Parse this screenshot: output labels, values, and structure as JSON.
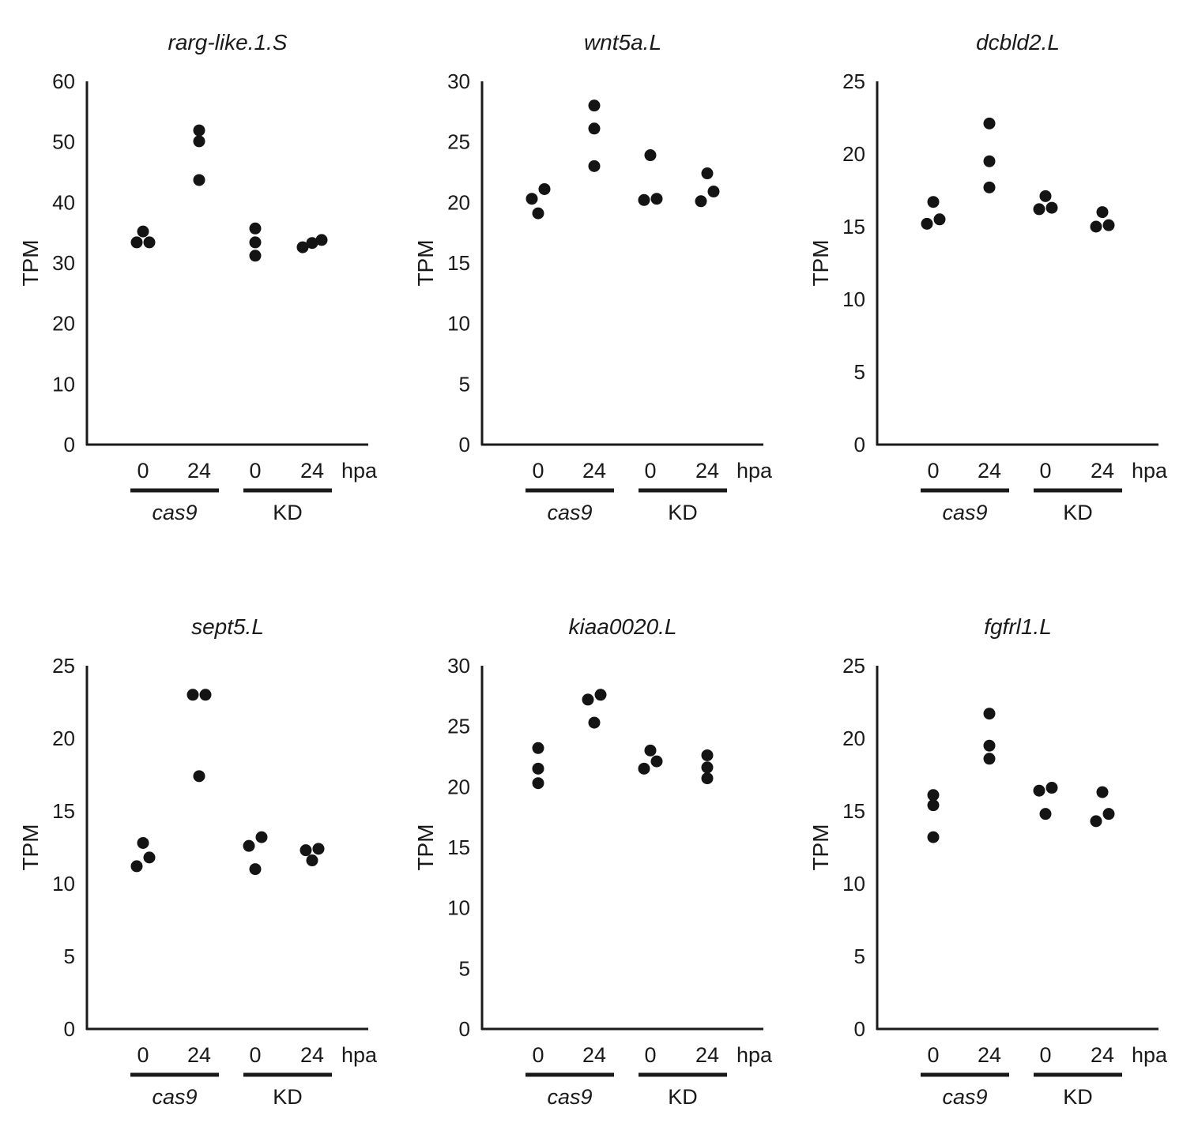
{
  "figure": {
    "point_color": "#141414",
    "axis_color": "#1a1a1a"
  },
  "chart_data": [
    {
      "type": "scatter",
      "title": "rarg-like.1.S",
      "ylabel": "TPM",
      "ylim": [
        0,
        60
      ],
      "yticks": [
        0,
        10,
        20,
        30,
        40,
        50,
        60
      ],
      "xtick_labels": [
        "0",
        "24",
        "0",
        "24"
      ],
      "xunit_label": "hpa",
      "groups": [
        {
          "label": "cas9",
          "italic": true
        },
        {
          "label": "KD",
          "italic": false
        }
      ],
      "series": [
        {
          "name": "cas9 0 hpa",
          "values": [
            35.2,
            33.4,
            33.4
          ]
        },
        {
          "name": "cas9 24 hpa",
          "values": [
            51.9,
            50.1,
            43.7
          ]
        },
        {
          "name": "KD 0 hpa",
          "values": [
            35.7,
            33.4,
            31.2
          ]
        },
        {
          "name": "KD 24 hpa",
          "values": [
            32.6,
            33.8,
            33.3
          ]
        }
      ]
    },
    {
      "type": "scatter",
      "title": "wnt5a.L",
      "ylabel": "TPM",
      "ylim": [
        0,
        30
      ],
      "yticks": [
        0,
        5,
        10,
        15,
        20,
        25,
        30
      ],
      "xtick_labels": [
        "0",
        "24",
        "0",
        "24"
      ],
      "xunit_label": "hpa",
      "groups": [
        {
          "label": "cas9",
          "italic": true
        },
        {
          "label": "KD",
          "italic": false
        }
      ],
      "series": [
        {
          "name": "cas9 0 hpa",
          "values": [
            21.1,
            20.3,
            19.1
          ]
        },
        {
          "name": "cas9 24 hpa",
          "values": [
            28.0,
            26.1,
            23.0
          ]
        },
        {
          "name": "KD 0 hpa",
          "values": [
            23.9,
            20.2,
            20.3
          ]
        },
        {
          "name": "KD 24 hpa",
          "values": [
            22.4,
            20.9,
            20.1
          ]
        }
      ]
    },
    {
      "type": "scatter",
      "title": "dcbld2.L",
      "ylabel": "TPM",
      "ylim": [
        0,
        25
      ],
      "yticks": [
        0,
        5,
        10,
        15,
        20,
        25
      ],
      "xtick_labels": [
        "0",
        "24",
        "0",
        "24"
      ],
      "xunit_label": "hpa",
      "groups": [
        {
          "label": "cas9",
          "italic": true
        },
        {
          "label": "KD",
          "italic": false
        }
      ],
      "series": [
        {
          "name": "cas9 0 hpa",
          "values": [
            16.7,
            15.2,
            15.5
          ]
        },
        {
          "name": "cas9 24 hpa",
          "values": [
            22.1,
            19.5,
            17.7
          ]
        },
        {
          "name": "KD 0 hpa",
          "values": [
            17.1,
            16.2,
            16.3
          ]
        },
        {
          "name": "KD 24 hpa",
          "values": [
            16.0,
            15.0,
            15.1
          ]
        }
      ]
    },
    {
      "type": "scatter",
      "title": "sept5.L",
      "ylabel": "TPM",
      "ylim": [
        0,
        25
      ],
      "yticks": [
        0,
        5,
        10,
        15,
        20,
        25
      ],
      "xtick_labels": [
        "0",
        "24",
        "0",
        "24"
      ],
      "xunit_label": "hpa",
      "groups": [
        {
          "label": "cas9",
          "italic": true
        },
        {
          "label": "KD",
          "italic": false
        }
      ],
      "series": [
        {
          "name": "cas9 0 hpa",
          "values": [
            12.8,
            11.8,
            11.2
          ]
        },
        {
          "name": "cas9 24 hpa",
          "values": [
            23.0,
            23.0,
            17.4
          ]
        },
        {
          "name": "KD 0 hpa",
          "values": [
            13.2,
            12.6,
            11.0
          ]
        },
        {
          "name": "KD 24 hpa",
          "values": [
            12.3,
            12.4,
            11.6
          ]
        }
      ]
    },
    {
      "type": "scatter",
      "title": "kiaa0020.L",
      "ylabel": "TPM",
      "ylim": [
        0,
        30
      ],
      "yticks": [
        0,
        5,
        10,
        15,
        20,
        25,
        30
      ],
      "xtick_labels": [
        "0",
        "24",
        "0",
        "24"
      ],
      "xunit_label": "hpa",
      "groups": [
        {
          "label": "cas9",
          "italic": true
        },
        {
          "label": "KD",
          "italic": false
        }
      ],
      "series": [
        {
          "name": "cas9 0 hpa",
          "values": [
            23.2,
            21.5,
            20.3
          ]
        },
        {
          "name": "cas9 24 hpa",
          "values": [
            27.2,
            27.6,
            25.3
          ]
        },
        {
          "name": "KD 0 hpa",
          "values": [
            23.0,
            22.1,
            21.5
          ]
        },
        {
          "name": "KD 24 hpa",
          "values": [
            22.6,
            21.6,
            20.7
          ]
        }
      ]
    },
    {
      "type": "scatter",
      "title": "fgfrl1.L",
      "ylabel": "TPM",
      "ylim": [
        0,
        25
      ],
      "yticks": [
        0,
        5,
        10,
        15,
        20,
        25
      ],
      "xtick_labels": [
        "0",
        "24",
        "0",
        "24"
      ],
      "xunit_label": "hpa",
      "groups": [
        {
          "label": "cas9",
          "italic": true
        },
        {
          "label": "KD",
          "italic": false
        }
      ],
      "series": [
        {
          "name": "cas9 0 hpa",
          "values": [
            16.1,
            15.4,
            13.2
          ]
        },
        {
          "name": "cas9 24 hpa",
          "values": [
            21.7,
            19.5,
            18.6
          ]
        },
        {
          "name": "KD 0 hpa",
          "values": [
            16.4,
            16.6,
            14.8
          ]
        },
        {
          "name": "KD 24 hpa",
          "values": [
            16.3,
            14.8,
            14.3
          ]
        }
      ]
    }
  ]
}
